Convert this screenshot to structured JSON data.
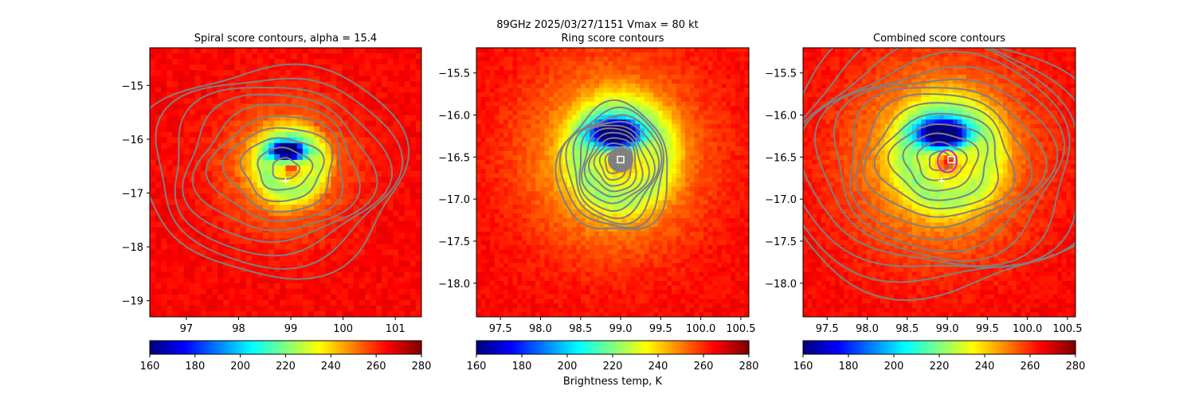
{
  "figure": {
    "suptitle": "89GHz  2025/03/27/1151    Vmax = 80 kt",
    "colorbar_label": "Brightness temp, K"
  },
  "colormap": {
    "name": "jet",
    "contour_color": "#808080",
    "marker_color": "#ffffff",
    "circle_color": "#cc22cc"
  },
  "chart_data": [
    {
      "type": "heatmap",
      "title": "Spiral score contours, alpha = 15.4",
      "xlim": [
        96.3,
        101.5
      ],
      "ylim": [
        -19.3,
        -14.3
      ],
      "xticks": [
        97,
        98,
        99,
        100,
        101
      ],
      "yticks": [
        -15,
        -16,
        -17,
        -18,
        -19
      ],
      "clim": [
        160,
        280
      ],
      "colorbar_ticks": [
        160,
        180,
        200,
        220,
        240,
        260,
        280
      ],
      "center": [
        98.9,
        -16.5
      ],
      "markers": [
        {
          "type": "plus",
          "x": 98.9,
          "y": -16.78
        }
      ],
      "contour_levels": 10
    },
    {
      "type": "heatmap",
      "title": "Ring score contours",
      "xlim": [
        97.2,
        100.6
      ],
      "ylim": [
        -18.4,
        -15.2
      ],
      "xticks": [
        97.5,
        98.0,
        98.5,
        99.0,
        99.5,
        100.0,
        100.5
      ],
      "yticks": [
        -15.5,
        -16.0,
        -16.5,
        -17.0,
        -17.5,
        -18.0
      ],
      "clim": [
        160,
        280
      ],
      "colorbar_ticks": [
        160,
        180,
        200,
        220,
        240,
        260,
        280
      ],
      "center": [
        98.9,
        -16.5
      ],
      "markers": [
        {
          "type": "square",
          "x": 99.0,
          "y": -16.53
        }
      ],
      "contour_levels": 12
    },
    {
      "type": "heatmap",
      "title": "Combined score contours",
      "xlim": [
        97.2,
        100.6
      ],
      "ylim": [
        -18.4,
        -15.2
      ],
      "xticks": [
        97.5,
        98.0,
        98.5,
        99.0,
        99.5,
        100.0,
        100.5
      ],
      "yticks": [
        -15.5,
        -16.0,
        -16.5,
        -17.0,
        -17.5,
        -18.0
      ],
      "clim": [
        160,
        280
      ],
      "colorbar_ticks": [
        160,
        180,
        200,
        220,
        240,
        260,
        280
      ],
      "center": [
        98.9,
        -16.5
      ],
      "markers": [
        {
          "type": "plus",
          "x": 98.93,
          "y": -16.78
        },
        {
          "type": "square",
          "x": 99.05,
          "y": -16.53
        },
        {
          "type": "circle",
          "x": 99.0,
          "y": -16.55
        }
      ],
      "contour_levels": 14
    }
  ]
}
